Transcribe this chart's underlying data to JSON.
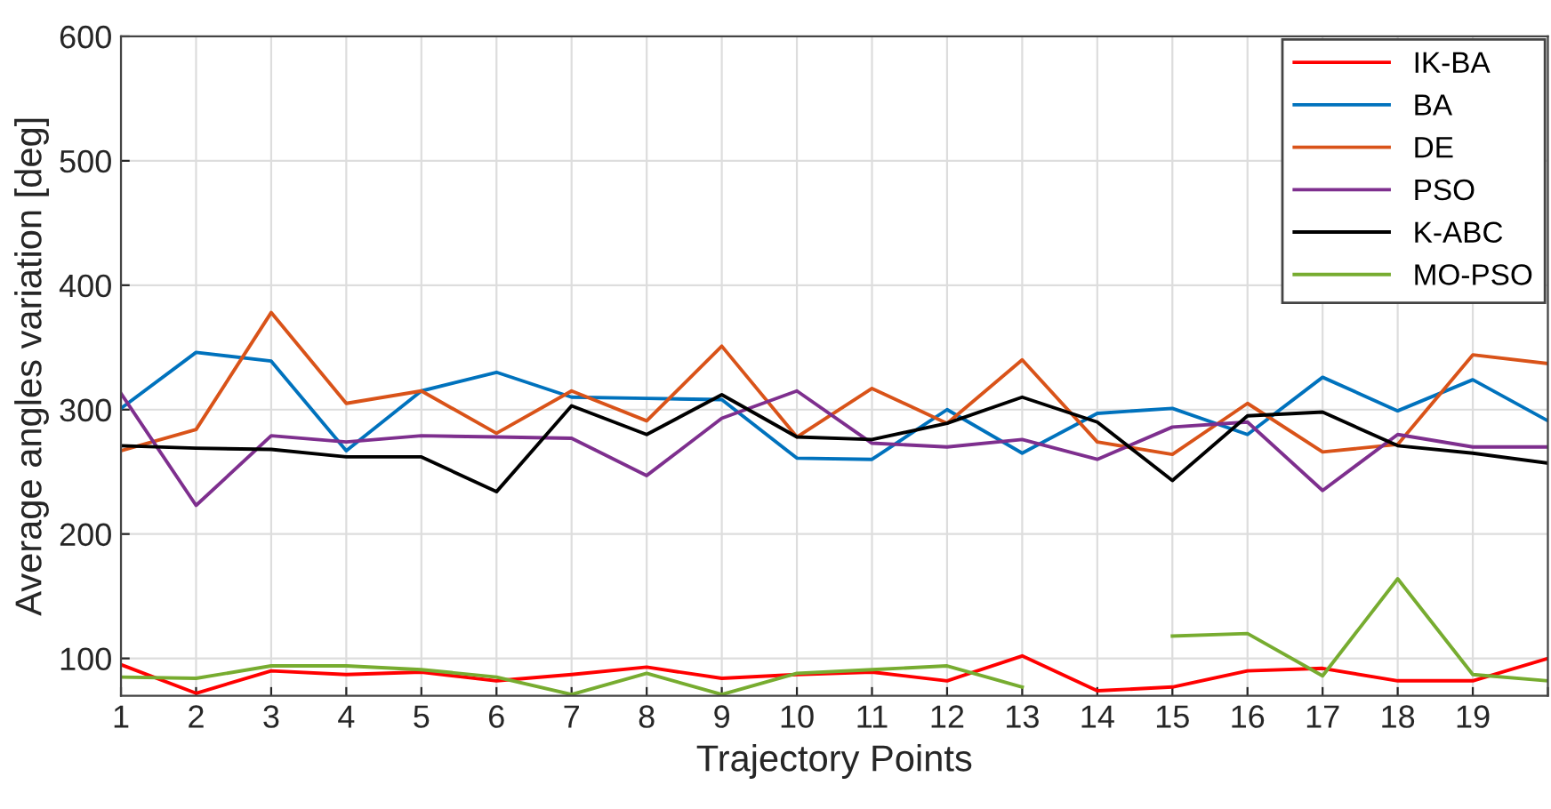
{
  "chart_data": {
    "type": "line",
    "xlabel": "Trajectory Points",
    "ylabel": "Average angles variation [deg]",
    "x": [
      1,
      2,
      3,
      4,
      5,
      6,
      7,
      8,
      9,
      10,
      11,
      12,
      13,
      14,
      15,
      16,
      17,
      18,
      19,
      20
    ],
    "xlim": [
      1,
      20
    ],
    "xticks": [
      1,
      2,
      3,
      4,
      5,
      6,
      7,
      8,
      9,
      10,
      11,
      12,
      13,
      14,
      15,
      16,
      17,
      18,
      19,
      {
        "value": 20,
        "label": null
      }
    ],
    "ylim": [
      70,
      600
    ],
    "yticks": [
      100,
      200,
      300,
      400,
      500,
      600
    ],
    "grid": true,
    "legend": "top right",
    "marker": "none",
    "line_style": "solid",
    "series": [
      {
        "name": "IK-BA",
        "color": "#ff0000",
        "values": [
          95,
          72,
          90,
          87,
          89,
          82,
          87,
          93,
          84,
          87,
          89,
          82,
          102,
          74,
          77,
          90,
          92,
          82,
          82,
          100
        ]
      },
      {
        "name": "BA",
        "color": "#0072bd",
        "values": [
          301,
          346,
          339,
          267,
          315,
          330,
          310,
          309,
          308,
          261,
          260,
          300,
          265,
          297,
          301,
          280,
          326,
          299,
          324,
          291
        ]
      },
      {
        "name": "DE",
        "color": "#d95319",
        "values": [
          267,
          284,
          378,
          305,
          315,
          281,
          315,
          291,
          351,
          278,
          317,
          289,
          340,
          274,
          264,
          305,
          266,
          272,
          344,
          337
        ]
      },
      {
        "name": "PSO",
        "color": "#7e2f8e",
        "values": [
          313,
          223,
          279,
          274,
          279,
          278,
          277,
          247,
          293,
          315,
          273,
          270,
          276,
          260,
          286,
          290,
          235,
          280,
          270,
          270
        ]
      },
      {
        "name": "K-ABC",
        "color": "#000000",
        "values": [
          271,
          269,
          268,
          262,
          262,
          234,
          303,
          280,
          312,
          278,
          276,
          289,
          310,
          290,
          243,
          295,
          298,
          271,
          265,
          257
        ]
      },
      {
        "name": "MO-PSO",
        "color": "#77ac30",
        "values": [
          85,
          84,
          94,
          94,
          91,
          85,
          71,
          88,
          71,
          88,
          91,
          94,
          77,
          null,
          118,
          120,
          86,
          164,
          87,
          82
        ]
      }
    ]
  }
}
